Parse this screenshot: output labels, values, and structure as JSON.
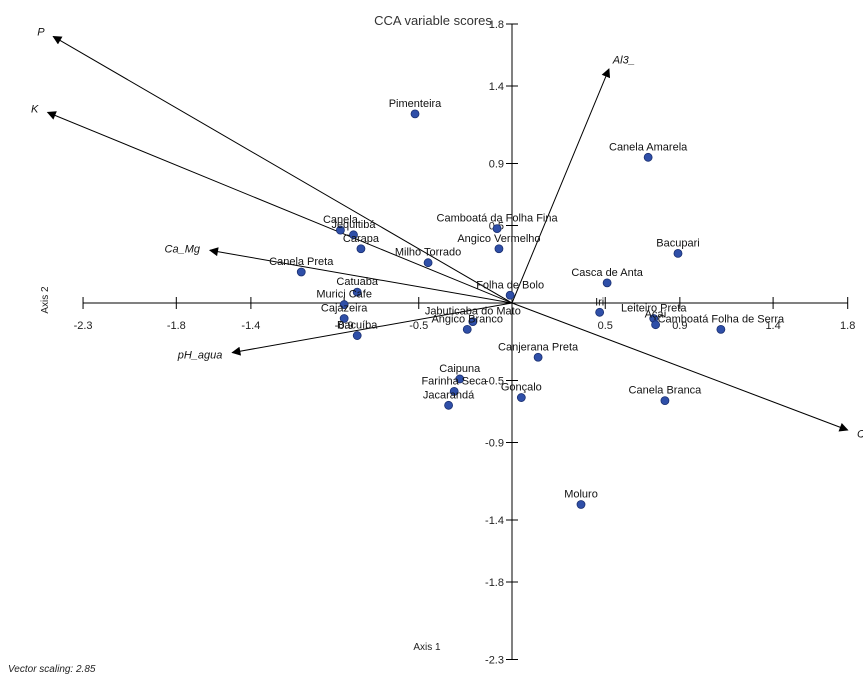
{
  "chart_data": {
    "type": "scatter",
    "title": "CCA variable scores",
    "xlabel": "Axis 1",
    "ylabel": "Axis 2",
    "xlim": [
      -2.3,
      1.8
    ],
    "ylim": [
      -2.3,
      1.8
    ],
    "x_ticks": [
      "-2.3",
      "-1.8",
      "-1.4",
      "-0.9",
      "-0.5",
      "0.5",
      "0.9",
      "1.4",
      "1.8"
    ],
    "y_ticks": [
      "1.8",
      "1.4",
      "0.9",
      "0.5",
      "-0.5",
      "-0.9",
      "-1.4",
      "-1.8",
      "-2.3"
    ],
    "point_color": "#2f4fa8",
    "points": [
      {
        "label": "Pimenteira",
        "x": -0.52,
        "y": 1.22
      },
      {
        "label": "Canela Amarela",
        "x": 0.73,
        "y": 0.94
      },
      {
        "label": "Camboatá da Folha Fina",
        "x": -0.08,
        "y": 0.48
      },
      {
        "label": "Canela",
        "x": -0.92,
        "y": 0.47
      },
      {
        "label": "Jequitibá",
        "x": -0.85,
        "y": 0.44
      },
      {
        "label": "Angico Vermelho",
        "x": -0.07,
        "y": 0.35
      },
      {
        "label": "Carapa",
        "x": -0.81,
        "y": 0.35
      },
      {
        "label": "Bacupari",
        "x": 0.89,
        "y": 0.32
      },
      {
        "label": "Milho Torrado",
        "x": -0.45,
        "y": 0.26
      },
      {
        "label": "Canela Preta",
        "x": -1.13,
        "y": 0.2
      },
      {
        "label": "Casca de Anta",
        "x": 0.51,
        "y": 0.13
      },
      {
        "label": "Catuaba",
        "x": -0.83,
        "y": 0.07
      },
      {
        "label": "Folha de Bolo",
        "x": -0.01,
        "y": 0.05
      },
      {
        "label": "Murici Cafe",
        "x": -0.9,
        "y": -0.01
      },
      {
        "label": "Iri",
        "x": 0.47,
        "y": -0.06
      },
      {
        "label": "Leiteiro Preta",
        "x": 0.76,
        "y": -0.1
      },
      {
        "label": "Cajazeira",
        "x": -0.9,
        "y": -0.1
      },
      {
        "label": "Jabuticaba do Mato",
        "x": -0.21,
        "y": -0.12
      },
      {
        "label": "Camboatá Folha de Serra",
        "x": 1.12,
        "y": -0.17
      },
      {
        "label": "Angico Branco",
        "x": -0.24,
        "y": -0.17
      },
      {
        "label": "Bacuíba",
        "x": -0.83,
        "y": -0.21
      },
      {
        "label": "Açaí",
        "x": 0.77,
        "y": -0.14
      },
      {
        "label": "Canjerana Preta",
        "x": 0.14,
        "y": -0.35
      },
      {
        "label": "Caipuna",
        "x": -0.28,
        "y": -0.49
      },
      {
        "label": "Farinha Seca",
        "x": -0.31,
        "y": -0.57
      },
      {
        "label": "Gonçalo",
        "x": 0.05,
        "y": -0.61
      },
      {
        "label": "Jacarandá",
        "x": -0.34,
        "y": -0.66
      },
      {
        "label": "Canela Branca",
        "x": 0.82,
        "y": -0.63
      },
      {
        "label": "Moluro",
        "x": 0.37,
        "y": -1.3
      }
    ],
    "vectors": [
      {
        "label": "P",
        "x": -2.46,
        "y": 1.72
      },
      {
        "label": "K",
        "x": -2.49,
        "y": 1.23
      },
      {
        "label": "Al3_",
        "x": 0.52,
        "y": 1.51
      },
      {
        "label": "Ca_Mg",
        "x": -1.62,
        "y": 0.34
      },
      {
        "label": "pH_agua",
        "x": -1.5,
        "y": -0.32
      },
      {
        "label": "C",
        "x": 1.8,
        "y": -0.82
      }
    ],
    "vector_scaling_note": "Vector scaling: 2.85",
    "grid": false
  }
}
